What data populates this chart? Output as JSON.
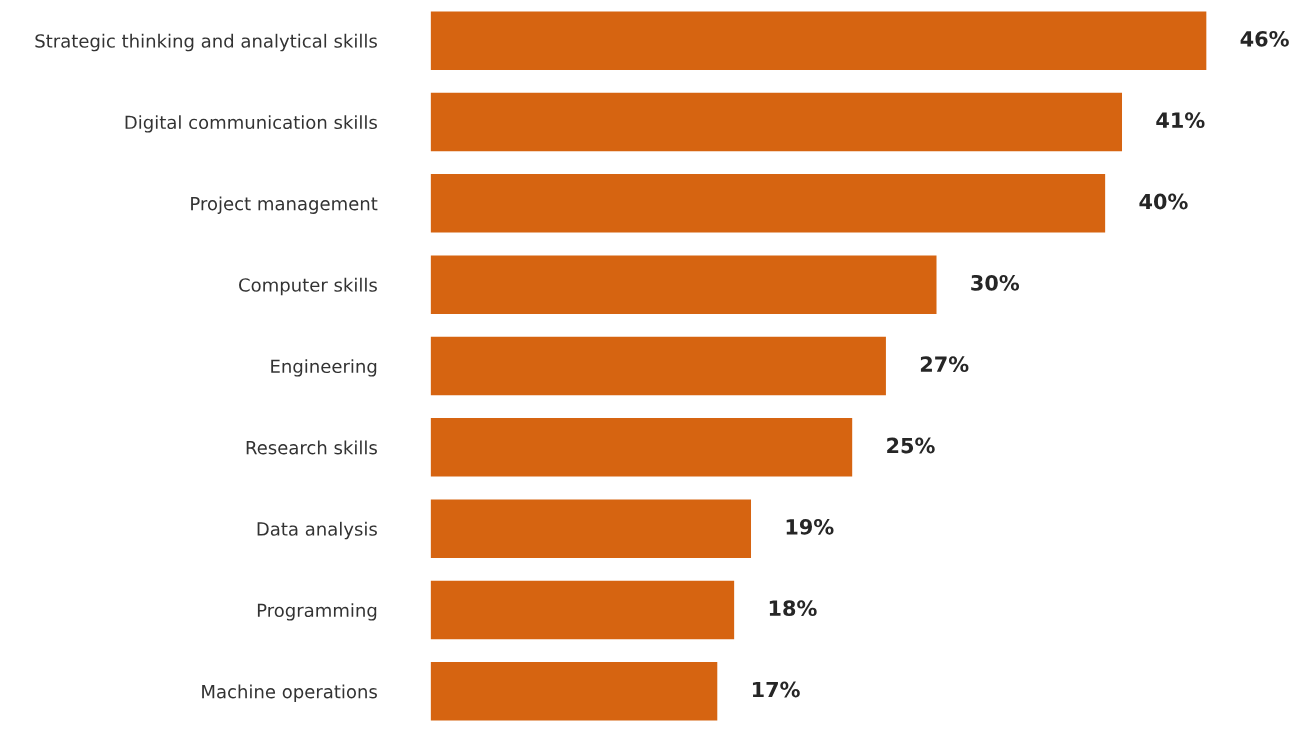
{
  "chart_data": {
    "type": "bar",
    "orientation": "horizontal",
    "categories": [
      "Strategic thinking and analytical skills",
      "Digital communication skills",
      "Project management",
      "Computer skills",
      "Engineering",
      "Research skills",
      "Data analysis",
      "Programming",
      "Machine operations"
    ],
    "values": [
      46,
      41,
      40,
      30,
      27,
      25,
      19,
      18,
      17
    ],
    "value_labels": [
      "46%",
      "41%",
      "40%",
      "30%",
      "27%",
      "25%",
      "19%",
      "18%",
      "17%"
    ],
    "color": "#d66411",
    "grid": false,
    "legend": false,
    "tick_labels": "y"
  }
}
